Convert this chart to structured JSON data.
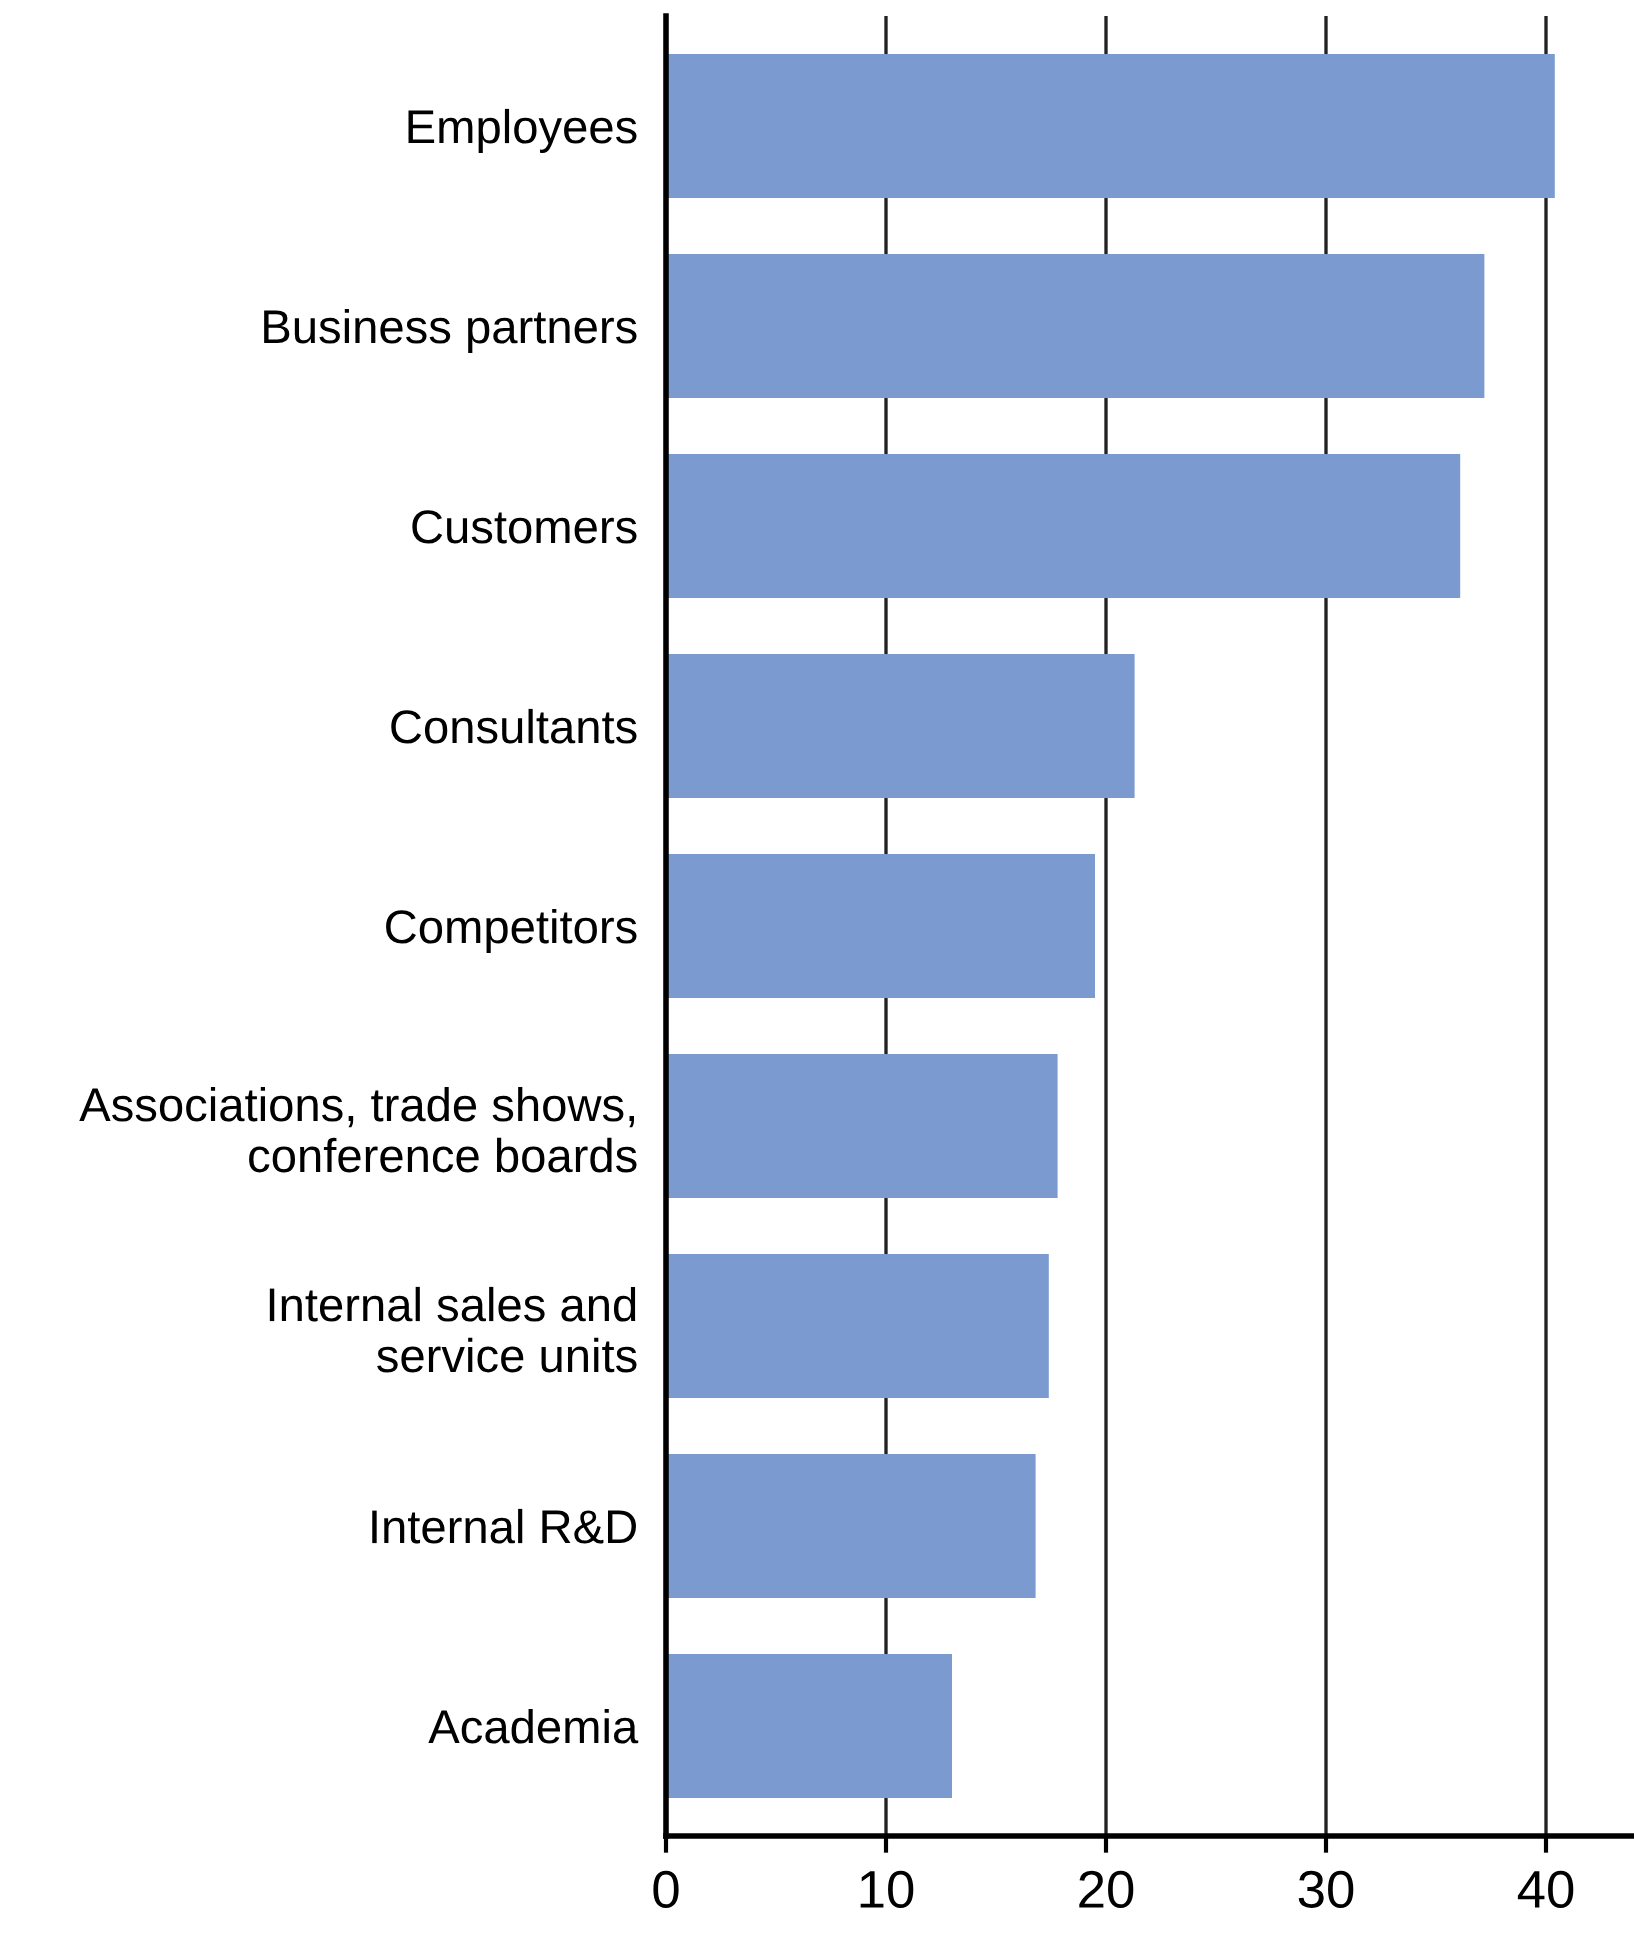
{
  "chart_data": {
    "type": "bar",
    "orientation": "horizontal",
    "categories": [
      "Employees",
      "Business partners",
      "Customers",
      "Consultants",
      "Competitors",
      "Associations, trade shows,\nconference boards",
      "Internal sales and\nservice units",
      "Internal R&D",
      "Academia"
    ],
    "values": [
      40.4,
      37.2,
      36.1,
      21.3,
      19.5,
      17.8,
      17.4,
      16.8,
      13.0
    ],
    "color": "#7b9bd0",
    "xlim": [
      0,
      44
    ],
    "xticks": [
      0,
      10,
      20,
      30,
      40
    ],
    "grid": "x",
    "legend": false
  }
}
